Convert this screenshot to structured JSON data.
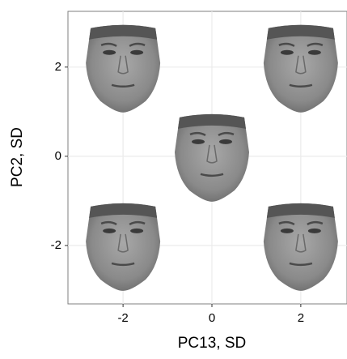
{
  "chart_data": {
    "type": "scatter",
    "x_label": "PC13, SD",
    "y_label": "PC2, SD",
    "x": [
      -2,
      2,
      0,
      -2,
      2
    ],
    "values": [
      2,
      2,
      0,
      -2,
      -2
    ],
    "xlim": [
      -3.24,
      3.04
    ],
    "ylim": [
      -3.31,
      3.25
    ],
    "xticks": [
      -2,
      0,
      2
    ],
    "yticks": [
      -2,
      0,
      2
    ],
    "grid": true,
    "color": "#8a8a8a"
  }
}
